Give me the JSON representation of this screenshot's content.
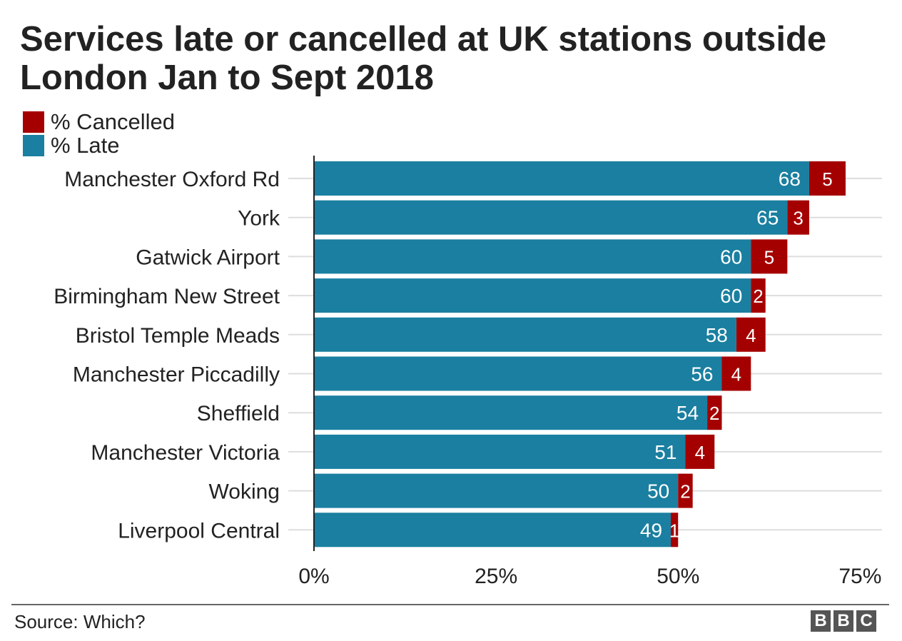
{
  "colors": {
    "late": "#1a7fa0",
    "cancelled": "#a50000",
    "grid": "#dddddd",
    "axis": "#222222",
    "label_on_bar": "#ffffff"
  },
  "footer": {
    "source": "Source: Which?",
    "logo_letters": [
      "B",
      "B",
      "C"
    ]
  },
  "chart_data": {
    "type": "bar",
    "orientation": "horizontal",
    "stacked": true,
    "title": "Services late or cancelled at UK stations outside London Jan to Sept 2018",
    "categories": [
      "Manchester Oxford Rd",
      "York",
      "Gatwick Airport",
      "Birmingham New Street",
      "Bristol Temple Meads",
      "Manchester Piccadilly",
      "Sheffield",
      "Manchester Victoria",
      "Woking",
      "Liverpool Central"
    ],
    "series": [
      {
        "name": "% Late",
        "color": "#1a7fa0",
        "values": [
          68,
          65,
          60,
          60,
          58,
          56,
          54,
          51,
          50,
          49
        ]
      },
      {
        "name": "% Cancelled",
        "color": "#a50000",
        "values": [
          5,
          3,
          5,
          2,
          4,
          4,
          2,
          4,
          2,
          1
        ]
      }
    ],
    "legend": [
      {
        "label": "% Cancelled",
        "color": "#a50000"
      },
      {
        "label": "% Late",
        "color": "#1a7fa0"
      }
    ],
    "legend_position": "top-left",
    "xlim": [
      0,
      78
    ],
    "xticks": [
      0,
      25,
      50,
      75
    ],
    "xtick_labels": [
      "0%",
      "25%",
      "50%",
      "75%"
    ],
    "xlabel": "",
    "ylabel": "",
    "grid": true,
    "data_labels": true
  }
}
